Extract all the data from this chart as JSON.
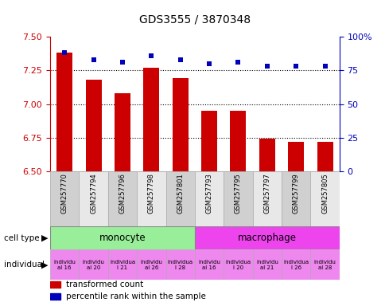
{
  "title": "GDS3555 / 3870348",
  "samples": [
    "GSM257770",
    "GSM257794",
    "GSM257796",
    "GSM257798",
    "GSM257801",
    "GSM257793",
    "GSM257795",
    "GSM257797",
    "GSM257799",
    "GSM257805"
  ],
  "transformed_counts": [
    7.38,
    7.18,
    7.08,
    7.27,
    7.19,
    6.95,
    6.95,
    6.74,
    6.72,
    6.72
  ],
  "percentile_ranks": [
    88,
    83,
    81,
    86,
    83,
    80,
    81,
    78,
    78,
    78
  ],
  "ylim": [
    6.5,
    7.5
  ],
  "yticks": [
    6.5,
    6.75,
    7.0,
    7.25,
    7.5
  ],
  "right_ylim": [
    0,
    100
  ],
  "right_yticks": [
    0,
    25,
    50,
    75,
    100
  ],
  "right_yticklabels": [
    "0",
    "25",
    "50",
    "75",
    "100%"
  ],
  "bar_color": "#cc0000",
  "dot_color": "#0000bb",
  "cell_types": [
    {
      "label": "monocyte",
      "start": 0,
      "end": 5,
      "color": "#99ee99"
    },
    {
      "label": "macrophage",
      "start": 5,
      "end": 10,
      "color": "#ee44ee"
    }
  ],
  "individuals": [
    {
      "label": "individu\nal 16",
      "idx": 0,
      "color": "#ee88ee"
    },
    {
      "label": "individu\nal 20",
      "idx": 1,
      "color": "#ee88ee"
    },
    {
      "label": "individua\nl 21",
      "idx": 2,
      "color": "#ee88ee"
    },
    {
      "label": "individu\nal 26",
      "idx": 3,
      "color": "#ee88ee"
    },
    {
      "label": "individua\nl 28",
      "idx": 4,
      "color": "#ee88ee"
    },
    {
      "label": "individu\nal 16",
      "idx": 5,
      "color": "#ee88ee"
    },
    {
      "label": "individua\nl 20",
      "idx": 6,
      "color": "#ee88ee"
    },
    {
      "label": "individu\nal 21",
      "idx": 7,
      "color": "#ee88ee"
    },
    {
      "label": "individua\nl 26",
      "idx": 8,
      "color": "#ee88ee"
    },
    {
      "label": "individu\nal 28",
      "idx": 9,
      "color": "#ee88ee"
    }
  ],
  "left_ylabel_color": "#cc0000",
  "right_ylabel_color": "#0000bb",
  "legend_items": [
    {
      "color": "#cc0000",
      "label": "transformed count"
    },
    {
      "color": "#0000bb",
      "label": "percentile rank within the sample"
    }
  ],
  "sample_box_colors": [
    "#d0d0d0",
    "#e8e8e8",
    "#d0d0d0",
    "#e8e8e8",
    "#d0d0d0",
    "#e8e8e8",
    "#d0d0d0",
    "#e8e8e8",
    "#d0d0d0",
    "#e8e8e8"
  ]
}
